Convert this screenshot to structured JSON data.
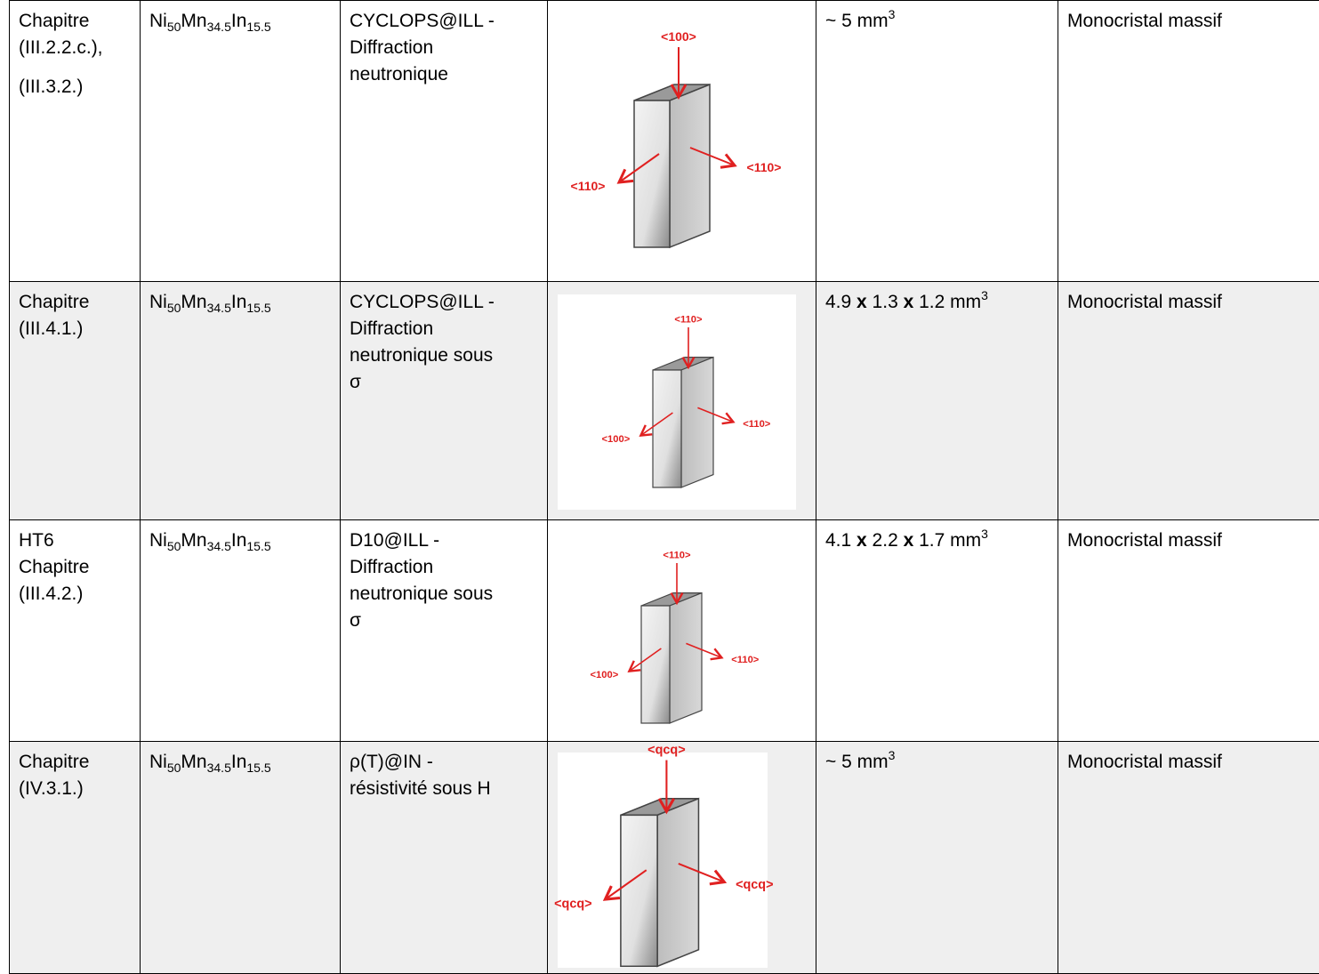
{
  "rows": [
    {
      "chapter": [
        [
          "Chapitre",
          "(III.2.2.c.),"
        ],
        [
          "(III.3.2.)"
        ]
      ],
      "sample": [
        {
          "t": "Ni"
        },
        {
          "t": "50",
          "style": "sub"
        },
        {
          "t": "Mn"
        },
        {
          "t": "34.5",
          "style": "sub"
        },
        {
          "t": "In"
        },
        {
          "t": "15.5",
          "style": "sub"
        }
      ],
      "experiment": [
        "CYCLOPS@ILL -",
        "Diffraction",
        "neutronique"
      ],
      "axes": {
        "top": "<100>",
        "left": "<110>",
        "right": "<110>"
      },
      "size": [
        {
          "t": "~ 5 mm"
        },
        {
          "t": "3",
          "style": "sup"
        }
      ],
      "form": "Monocristal massif"
    },
    {
      "chapter": [
        [
          "Chapitre",
          "(III.4.1.)"
        ]
      ],
      "sample": [
        {
          "t": "Ni"
        },
        {
          "t": "50",
          "style": "sub"
        },
        {
          "t": "Mn"
        },
        {
          "t": "34.5",
          "style": "sub"
        },
        {
          "t": "In"
        },
        {
          "t": "15.5",
          "style": "sub"
        }
      ],
      "experiment": [
        "CYCLOPS@ILL -",
        "Diffraction",
        "neutronique sous",
        "σ"
      ],
      "axes": {
        "top": "<110>",
        "left": "<100>",
        "right": "<110>"
      },
      "size": [
        {
          "t": "4.9 "
        },
        {
          "t": "x",
          "style": "b"
        },
        {
          "t": " 1.3 "
        },
        {
          "t": "x",
          "style": "b"
        },
        {
          "t": " 1.2 mm"
        },
        {
          "t": "3",
          "style": "sup"
        }
      ],
      "form": "Monocristal massif"
    },
    {
      "chapter": [
        [
          "HT6",
          "Chapitre",
          "(III.4.2.)"
        ]
      ],
      "sample": [
        {
          "t": "Ni"
        },
        {
          "t": "50",
          "style": "sub"
        },
        {
          "t": "Mn"
        },
        {
          "t": "34.5",
          "style": "sub"
        },
        {
          "t": "In"
        },
        {
          "t": "15.5",
          "style": "sub"
        }
      ],
      "experiment": [
        "D10@ILL -",
        "Diffraction",
        "neutronique sous",
        "σ"
      ],
      "axes": {
        "top": "<110>",
        "left": "<100>",
        "right": "<110>"
      },
      "size": [
        {
          "t": "4.1 "
        },
        {
          "t": "x",
          "style": "b"
        },
        {
          "t": " 2.2 "
        },
        {
          "t": "x",
          "style": "b"
        },
        {
          "t": " 1.7 mm"
        },
        {
          "t": "3",
          "style": "sup"
        }
      ],
      "form": "Monocristal massif"
    },
    {
      "chapter": [
        [
          "Chapitre",
          "(IV.3.1.)"
        ]
      ],
      "sample": [
        {
          "t": "Ni"
        },
        {
          "t": "50",
          "style": "sub"
        },
        {
          "t": "Mn"
        },
        {
          "t": "34.5",
          "style": "sub"
        },
        {
          "t": "In"
        },
        {
          "t": "15.5",
          "style": "sub"
        }
      ],
      "experiment": [
        "ρ(T)@IN -",
        "résistivité sous H"
      ],
      "axes": {
        "top": "<qcq>",
        "left": "<qcq>",
        "right": "<qcq>"
      },
      "size": [
        {
          "t": "~ 5 mm"
        },
        {
          "t": "3",
          "style": "sup"
        }
      ],
      "form": "Monocristal massif"
    }
  ]
}
